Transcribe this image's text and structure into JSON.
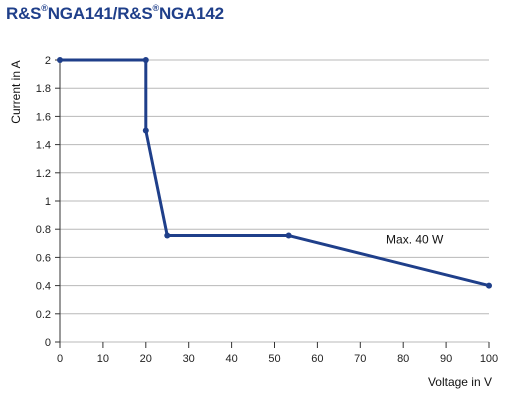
{
  "chart_data": {
    "type": "line",
    "title_parts": {
      "brand1": "R&S",
      "reg1": "®",
      "model1": "NGA141/R&S",
      "reg2": "®",
      "model2": "NGA142"
    },
    "xlabel": "Voltage in V",
    "ylabel": "Current in A",
    "xlim": [
      0,
      100
    ],
    "ylim": [
      0,
      2
    ],
    "xticks": [
      0,
      10,
      20,
      30,
      40,
      50,
      60,
      70,
      80,
      90,
      100
    ],
    "yticks": [
      0,
      0.2,
      0.4,
      0.6,
      0.8,
      1,
      1.2,
      1.4,
      1.6,
      1.8,
      2
    ],
    "ytick_labels": [
      "0",
      "0.2",
      "0.4",
      "0.6",
      "0.8",
      "1",
      "1.2",
      "1.4",
      "1.6",
      "1.8",
      "2"
    ],
    "grid": "horizontal",
    "series": [
      {
        "color": "#1f3f8a",
        "points": [
          [
            0,
            2.0
          ],
          [
            20,
            2.0
          ],
          [
            20,
            1.5
          ],
          [
            25,
            0.755
          ],
          [
            53.3,
            0.755
          ],
          [
            100,
            0.4
          ]
        ]
      }
    ],
    "annotation": {
      "text": "Max. 40 W",
      "x": 76,
      "y": 0.7
    }
  }
}
